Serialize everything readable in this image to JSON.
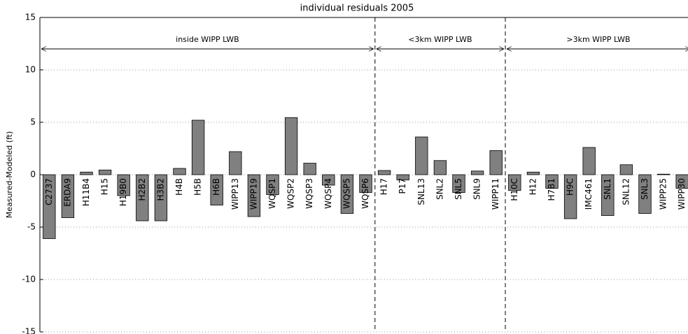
{
  "chart_data": {
    "type": "bar",
    "title": "individual residuals 2005",
    "y_label": "Measured-Modeled (ft)",
    "annotations": [
      "inside WIPP LWB",
      "<3km WIPP LWB",
      ">3km WIPP LWB"
    ],
    "categories": [
      "C2737",
      "ERDA9",
      "H11B4",
      "H15",
      "H19B0",
      "H2B2",
      "H3B2",
      "H4B",
      "H5B",
      "H6B",
      "WIPP13",
      "WIPP19",
      "WQSP1",
      "WQSP2",
      "WQSP3",
      "WQSP4",
      "WQSP5",
      "WQSP6",
      "H17",
      "P17",
      "SNL13",
      "SNL2",
      "SNL5",
      "SNL9",
      "WIPP11",
      "H10C",
      "H12",
      "H7B1",
      "H9C",
      "IMC461",
      "SNL1",
      "SNL12",
      "SNL3",
      "WIPP25",
      "WIPP30"
    ],
    "values": [
      -6.1,
      -4.1,
      0.25,
      0.45,
      -2.0,
      -4.4,
      -4.4,
      0.6,
      5.2,
      -2.9,
      2.2,
      -4.0,
      -1.9,
      5.45,
      1.1,
      -1.0,
      -3.7,
      -1.7,
      0.4,
      -0.5,
      3.6,
      1.35,
      -1.7,
      0.35,
      2.3,
      -1.5,
      0.25,
      -1.3,
      -4.2,
      2.6,
      -3.9,
      0.95,
      -3.7,
      0.05,
      -1.3
    ],
    "color": "#808080",
    "ylim": [
      -15,
      15
    ],
    "yticks": [
      -15,
      -10,
      -5,
      0,
      5,
      10,
      15
    ],
    "grid": true
  }
}
